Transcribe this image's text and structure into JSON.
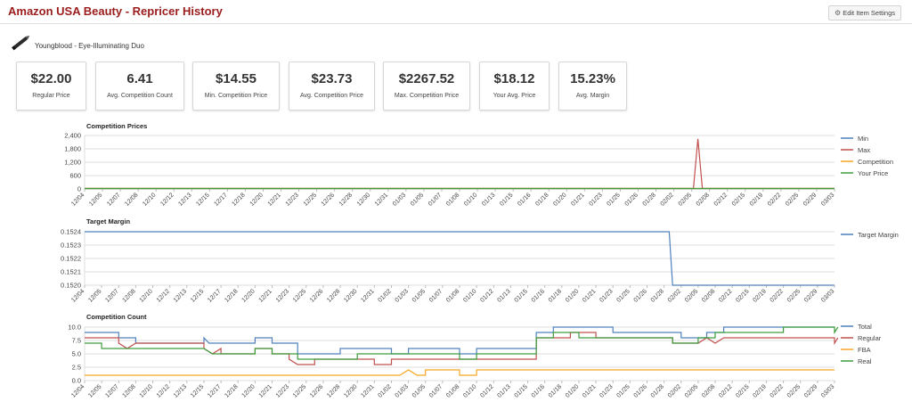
{
  "header": {
    "title": "Amazon USA Beauty - Repricer History",
    "edit_button": "Edit Item Settings"
  },
  "product": {
    "name": "Youngblood - Eye-Illuminating Duo",
    "icon": "pen-icon"
  },
  "stats": [
    {
      "value": "$22.00",
      "label": "Regular Price"
    },
    {
      "value": "6.41",
      "label": "Avg. Competition Count"
    },
    {
      "value": "$14.55",
      "label": "Min. Competition Price"
    },
    {
      "value": "$23.73",
      "label": "Avg. Competition Price"
    },
    {
      "value": "$2267.52",
      "label": "Max. Competition Price"
    },
    {
      "value": "$18.12",
      "label": "Your Avg. Price"
    },
    {
      "value": "15.23%",
      "label": "Avg. Margin"
    }
  ],
  "colors": {
    "blue": "#4e81bd",
    "red": "#c0504d",
    "orange": "#f5a623",
    "green": "#3d9d3d",
    "title_red": "#9b1c1c"
  },
  "chart_data": [
    {
      "type": "line",
      "title": "Competition Prices",
      "xlabel": "",
      "ylabel": "",
      "x": [
        "12/04",
        "12/05",
        "12/07",
        "12/08",
        "12/10",
        "12/12",
        "12/13",
        "12/15",
        "12/17",
        "12/18",
        "12/20",
        "12/21",
        "12/23",
        "12/25",
        "12/26",
        "12/28",
        "12/30",
        "12/31",
        "01/03",
        "01/05",
        "01/07",
        "01/08",
        "01/10",
        "01/13",
        "01/15",
        "01/16",
        "01/18",
        "01/20",
        "01/21",
        "01/23",
        "01/25",
        "01/26",
        "01/28",
        "02/02",
        "02/05",
        "02/08",
        "02/12",
        "02/15",
        "02/19",
        "02/22",
        "02/25",
        "02/29",
        "03/03"
      ],
      "ylim": [
        0,
        2400
      ],
      "yticks": [
        "2,400",
        "1,800",
        "1,200",
        "600",
        "0"
      ],
      "legend_position": "right",
      "series": [
        {
          "name": "Min",
          "color": "#4e81bd",
          "points": [
            [
              0,
              15
            ],
            [
              42,
              15
            ]
          ]
        },
        {
          "name": "Max",
          "color": "#c0504d",
          "points": [
            [
              0,
              30
            ],
            [
              34.1,
              30
            ],
            [
              34.35,
              2250
            ],
            [
              34.6,
              30
            ],
            [
              42,
              30
            ]
          ]
        },
        {
          "name": "Competition",
          "color": "#f5a623",
          "points": [
            [
              0,
              22
            ],
            [
              42,
              22
            ]
          ]
        },
        {
          "name": "Your Price",
          "color": "#3d9d3d",
          "points": [
            [
              0,
              18
            ],
            [
              42,
              18
            ]
          ]
        }
      ]
    },
    {
      "type": "line",
      "title": "Target Margin",
      "xlabel": "",
      "ylabel": "",
      "x": [
        "12/04",
        "12/05",
        "12/07",
        "12/08",
        "12/10",
        "12/12",
        "12/13",
        "12/15",
        "12/17",
        "12/18",
        "12/20",
        "12/21",
        "12/23",
        "12/25",
        "12/26",
        "12/28",
        "12/30",
        "12/31",
        "01/02",
        "01/03",
        "01/05",
        "01/07",
        "01/08",
        "01/10",
        "01/12",
        "01/13",
        "01/15",
        "01/16",
        "01/18",
        "01/20",
        "01/21",
        "01/23",
        "01/25",
        "01/26",
        "01/28",
        "02/02",
        "02/05",
        "02/08",
        "02/12",
        "02/15",
        "02/19",
        "02/22",
        "02/25",
        "02/29",
        "03/03"
      ],
      "ylim": [
        0.152,
        0.1524
      ],
      "yticks": [
        "0.1524",
        "0.1523",
        "0.1522",
        "0.1521",
        "0.1520"
      ],
      "legend_position": "right",
      "series": [
        {
          "name": "Target Margin",
          "color": "#4e81bd",
          "points": [
            [
              0,
              0.1524
            ],
            [
              34.3,
              0.1524
            ],
            [
              34.5,
              0.152
            ],
            [
              44,
              0.152
            ]
          ]
        }
      ]
    },
    {
      "type": "line",
      "title": "Competition Count",
      "xlabel": "",
      "ylabel": "",
      "x": [
        "12/04",
        "12/05",
        "12/07",
        "12/08",
        "12/10",
        "12/12",
        "12/13",
        "12/15",
        "12/17",
        "12/18",
        "12/20",
        "12/21",
        "12/23",
        "12/25",
        "12/26",
        "12/28",
        "12/30",
        "12/31",
        "01/02",
        "01/03",
        "01/05",
        "01/07",
        "01/08",
        "01/10",
        "01/12",
        "01/13",
        "01/15",
        "01/16",
        "01/18",
        "01/20",
        "01/21",
        "01/23",
        "01/25",
        "01/26",
        "01/28",
        "02/02",
        "02/05",
        "02/08",
        "02/12",
        "02/15",
        "02/19",
        "02/22",
        "02/25",
        "02/29",
        "03/03"
      ],
      "ylim": [
        0,
        10
      ],
      "yticks": [
        "10.0",
        "7.5",
        "5.0",
        "2.5",
        "0.0"
      ],
      "legend_position": "right",
      "series": [
        {
          "name": "Total",
          "color": "#4e81bd",
          "points": [
            [
              0,
              9
            ],
            [
              2,
              9
            ],
            [
              2,
              8
            ],
            [
              3,
              8
            ],
            [
              3,
              7
            ],
            [
              7,
              7
            ],
            [
              7,
              8
            ],
            [
              7.3,
              7
            ],
            [
              10,
              7
            ],
            [
              10,
              8
            ],
            [
              11,
              8
            ],
            [
              11,
              7
            ],
            [
              12.5,
              7
            ],
            [
              12.5,
              5
            ],
            [
              15,
              5
            ],
            [
              15,
              6
            ],
            [
              18,
              6
            ],
            [
              18,
              5
            ],
            [
              19,
              5
            ],
            [
              19,
              6
            ],
            [
              22,
              6
            ],
            [
              22,
              5
            ],
            [
              23,
              5
            ],
            [
              23,
              6
            ],
            [
              26.5,
              6
            ],
            [
              26.5,
              9
            ],
            [
              27.5,
              9
            ],
            [
              27.5,
              10
            ],
            [
              29,
              10
            ],
            [
              29,
              10
            ],
            [
              31,
              10
            ],
            [
              31,
              9
            ],
            [
              35,
              9
            ],
            [
              35,
              8
            ],
            [
              36.5,
              8
            ],
            [
              36.5,
              9
            ],
            [
              37.5,
              9
            ],
            [
              37.5,
              10
            ],
            [
              44,
              10
            ]
          ]
        },
        {
          "name": "Regular",
          "color": "#c0504d",
          "points": [
            [
              0,
              8
            ],
            [
              2,
              8
            ],
            [
              2,
              7
            ],
            [
              2.5,
              6
            ],
            [
              3,
              7
            ],
            [
              7,
              7
            ],
            [
              7,
              6
            ],
            [
              7.5,
              5
            ],
            [
              8,
              6
            ],
            [
              8,
              5
            ],
            [
              10,
              5
            ],
            [
              10,
              6
            ],
            [
              11,
              6
            ],
            [
              11,
              5
            ],
            [
              12,
              5
            ],
            [
              12,
              4
            ],
            [
              12.5,
              3
            ],
            [
              13.5,
              3
            ],
            [
              13.5,
              4
            ],
            [
              15,
              4
            ],
            [
              15,
              4
            ],
            [
              17,
              4
            ],
            [
              17,
              3
            ],
            [
              18,
              3
            ],
            [
              18,
              4
            ],
            [
              26.5,
              4
            ],
            [
              26.5,
              8
            ],
            [
              28.5,
              8
            ],
            [
              28.5,
              9
            ],
            [
              30,
              9
            ],
            [
              30,
              8
            ],
            [
              34.5,
              8
            ],
            [
              34.5,
              7
            ],
            [
              36,
              7
            ],
            [
              36.5,
              8
            ],
            [
              37,
              7
            ],
            [
              37.5,
              8
            ],
            [
              44,
              8
            ],
            [
              44,
              7
            ],
            [
              44.2,
              8
            ]
          ]
        },
        {
          "name": "FBA",
          "color": "#f5a623",
          "points": [
            [
              0,
              1
            ],
            [
              16,
              1
            ],
            [
              18,
              1
            ],
            [
              18.5,
              1
            ],
            [
              19,
              2
            ],
            [
              19.5,
              1
            ],
            [
              20,
              1
            ],
            [
              20,
              2
            ],
            [
              22,
              2
            ],
            [
              22,
              1
            ],
            [
              23,
              1
            ],
            [
              23,
              2
            ],
            [
              44,
              2
            ]
          ]
        },
        {
          "name": "Real",
          "color": "#3d9d3d",
          "points": [
            [
              0,
              7
            ],
            [
              1,
              7
            ],
            [
              1,
              6
            ],
            [
              2,
              6
            ],
            [
              2,
              6
            ],
            [
              3,
              6
            ],
            [
              3,
              6
            ],
            [
              7,
              6
            ],
            [
              7,
              6
            ],
            [
              7.5,
              5
            ],
            [
              8,
              5
            ],
            [
              10,
              5
            ],
            [
              10,
              6
            ],
            [
              11,
              6
            ],
            [
              11,
              5
            ],
            [
              12.5,
              5
            ],
            [
              12.5,
              4
            ],
            [
              16,
              4
            ],
            [
              16,
              5
            ],
            [
              22,
              5
            ],
            [
              22,
              4
            ],
            [
              23,
              4
            ],
            [
              23,
              5
            ],
            [
              26.5,
              5
            ],
            [
              26.5,
              8
            ],
            [
              27.5,
              8
            ],
            [
              27.5,
              9
            ],
            [
              29,
              9
            ],
            [
              29,
              8
            ],
            [
              34.5,
              8
            ],
            [
              34.5,
              7
            ],
            [
              36,
              7
            ],
            [
              36,
              8
            ],
            [
              37,
              8
            ],
            [
              37,
              9
            ],
            [
              38,
              9
            ],
            [
              38,
              9
            ],
            [
              41,
              9
            ],
            [
              41,
              10
            ],
            [
              44,
              10
            ],
            [
              44,
              9
            ],
            [
              44.2,
              10
            ]
          ]
        }
      ]
    }
  ]
}
